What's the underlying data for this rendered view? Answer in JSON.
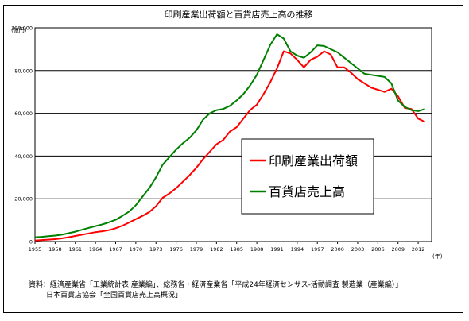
{
  "chart_data": {
    "type": "line",
    "title": "印刷産業出荷額と百貨店売上高の推移",
    "ylabel": "(億円)",
    "xlabel": "(年)",
    "ylim": [
      0,
      100000
    ],
    "xlim": [
      1955,
      2014
    ],
    "yticks": [
      "0",
      "20,000",
      "40,000",
      "60,000",
      "80,000",
      "100,000"
    ],
    "xticks": [
      "1955",
      "1958",
      "1961",
      "1964",
      "1967",
      "1970",
      "1973",
      "1976",
      "1979",
      "1982",
      "1985",
      "1988",
      "1991",
      "1994",
      "1997",
      "2000",
      "2003",
      "2006",
      "2009",
      "2012"
    ],
    "grid": "horizontal",
    "legend_position": "center-right",
    "series": [
      {
        "name": "印刷産業出荷額",
        "color": "#ff0000",
        "x": [
          1955,
          1956,
          1957,
          1958,
          1959,
          1960,
          1961,
          1962,
          1963,
          1964,
          1965,
          1966,
          1967,
          1968,
          1969,
          1970,
          1971,
          1972,
          1973,
          1974,
          1975,
          1976,
          1977,
          1978,
          1979,
          1980,
          1981,
          1982,
          1983,
          1984,
          1985,
          1986,
          1987,
          1988,
          1989,
          1990,
          1991,
          1992,
          1993,
          1994,
          1995,
          1996,
          1997,
          1998,
          1999,
          2000,
          2001,
          2002,
          2003,
          2004,
          2005,
          2006,
          2007,
          2008,
          2009,
          2010,
          2011,
          2012,
          2013
        ],
        "values": [
          500,
          700,
          900,
          1100,
          1500,
          2000,
          2600,
          3200,
          3800,
          4400,
          4800,
          5300,
          6200,
          7400,
          8900,
          10500,
          12000,
          13800,
          16500,
          20500,
          22500,
          25000,
          28000,
          31000,
          34500,
          38500,
          42000,
          45500,
          47500,
          51500,
          53500,
          57500,
          61500,
          64000,
          69000,
          74500,
          81000,
          89000,
          88000,
          85000,
          81500,
          85000,
          86500,
          89000,
          87500,
          81500,
          81500,
          79000,
          76000,
          74000,
          72000,
          71000,
          70000,
          71500,
          68000,
          62500,
          62000,
          57500,
          56000
        ]
      },
      {
        "name": "百貨店売上高",
        "color": "#008000",
        "x": [
          1955,
          1956,
          1957,
          1958,
          1959,
          1960,
          1961,
          1962,
          1963,
          1964,
          1965,
          1966,
          1967,
          1968,
          1969,
          1970,
          1971,
          1972,
          1973,
          1974,
          1975,
          1976,
          1977,
          1978,
          1979,
          1980,
          1981,
          1982,
          1983,
          1984,
          1985,
          1986,
          1987,
          1988,
          1989,
          1990,
          1991,
          1992,
          1993,
          1994,
          1995,
          1996,
          1997,
          1998,
          1999,
          2000,
          2001,
          2002,
          2003,
          2004,
          2005,
          2006,
          2007,
          2008,
          2009,
          2010,
          2011,
          2012,
          2013
        ],
        "values": [
          2000,
          2200,
          2500,
          2800,
          3200,
          3900,
          4600,
          5500,
          6400,
          7200,
          8000,
          9000,
          10200,
          12000,
          14000,
          17000,
          21000,
          25000,
          30000,
          36000,
          39500,
          43000,
          46000,
          48500,
          52000,
          57000,
          60000,
          61500,
          62000,
          63500,
          66000,
          69000,
          73000,
          78000,
          85000,
          92000,
          97000,
          95000,
          89000,
          87000,
          86000,
          88500,
          91800,
          91500,
          90000,
          88500,
          86000,
          83500,
          81000,
          78500,
          78000,
          77500,
          77000,
          74000,
          66000,
          63000,
          61500,
          61000,
          62000
        ]
      }
    ],
    "source_lines": [
      "資料：経済産業省「工業統計表 産業編」、総務省・経済産業省「平成24年経済センサス-活動調査 製造業（産業編）」",
      "日本百貨店協会「全国百貨店売上高概況」"
    ]
  }
}
